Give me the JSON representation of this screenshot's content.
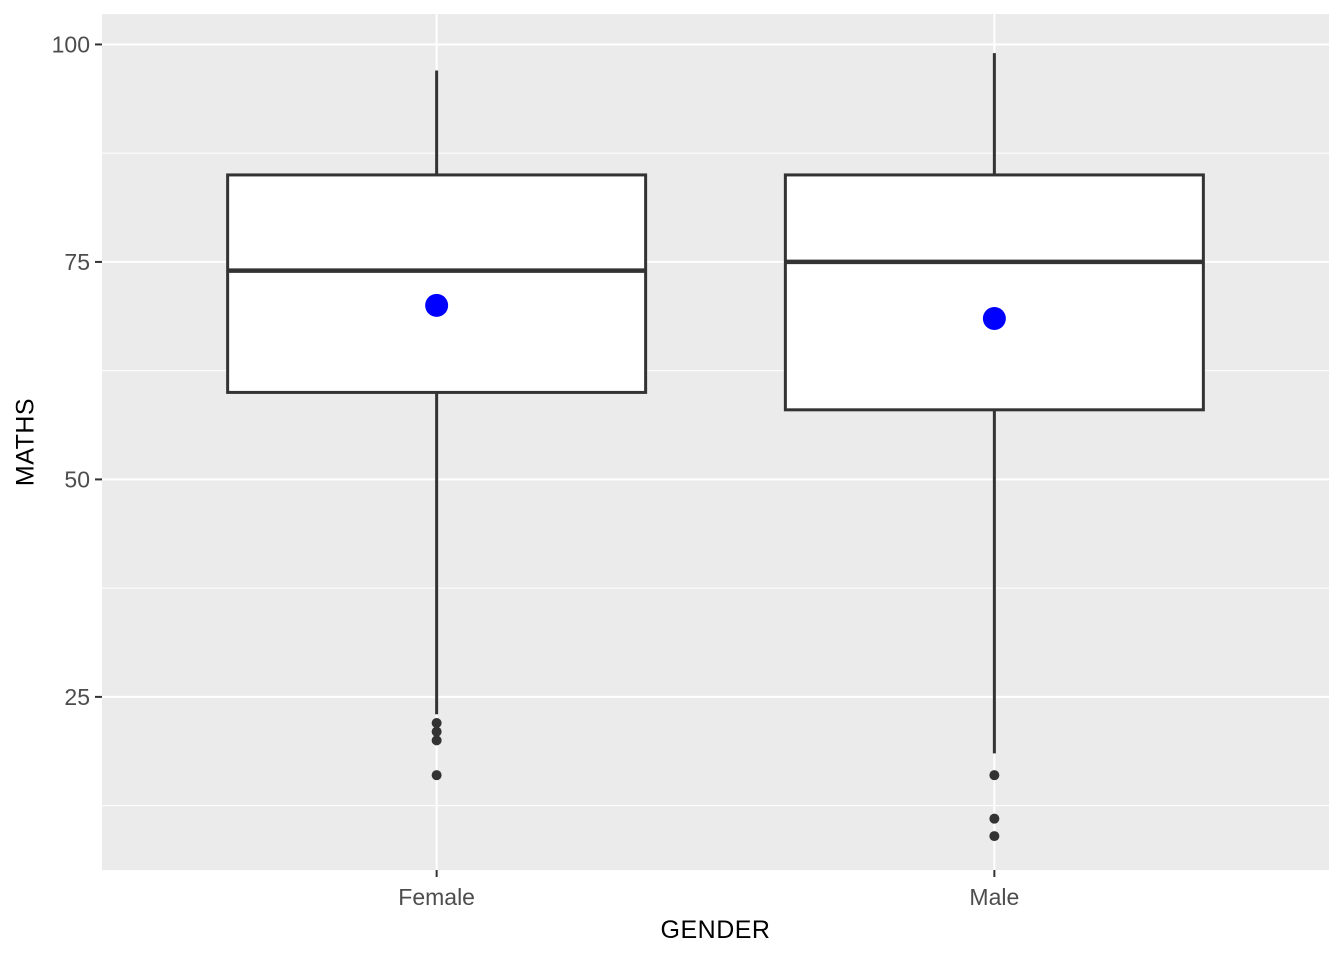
{
  "chart_data": {
    "type": "boxplot",
    "xlabel": "GENDER",
    "ylabel": "MATHS",
    "categories": [
      "Female",
      "Male"
    ],
    "y_ticks": [
      25,
      50,
      75,
      100
    ],
    "y_minor_ticks": [
      12.5,
      37.5,
      62.5,
      87.5
    ],
    "ylim": [
      5.1,
      103.5
    ],
    "series": [
      {
        "category": "Female",
        "whisker_low": 23,
        "q1": 60,
        "median": 74,
        "q3": 85,
        "whisker_high": 97,
        "mean": 70,
        "outliers": [
          22,
          21,
          20,
          16
        ]
      },
      {
        "category": "Male",
        "whisker_low": 18.5,
        "q1": 58,
        "median": 75,
        "q3": 85,
        "whisker_high": 99,
        "mean": 68.5,
        "outliers": [
          16,
          11,
          9
        ]
      }
    ],
    "colors": {
      "panel_bg": "#EBEBEB",
      "grid": "#FFFFFF",
      "box_fill": "#FFFFFF",
      "box_stroke": "#333333",
      "median": "#333333",
      "whisker": "#333333",
      "outlier": "#333333",
      "mean_point": "#0000FF",
      "tick_mark": "#333333",
      "tick_label": "#4D4D4D",
      "axis_title": "#000000"
    },
    "legend": "none",
    "grid_on": true
  }
}
